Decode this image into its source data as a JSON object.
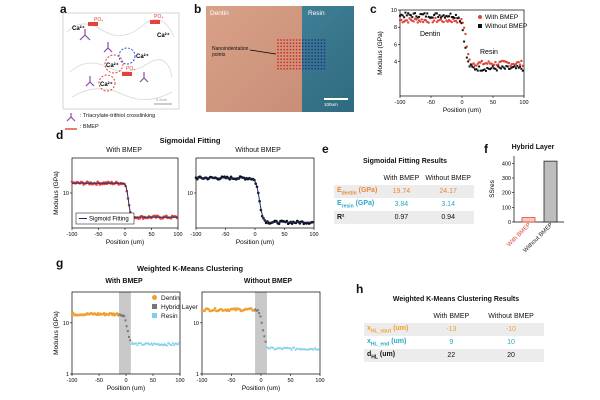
{
  "panels": {
    "a": {
      "label": "a",
      "legend": [
        {
          "icon": "triacrylate-trithiol-crosslink-icon",
          "text": ": Triacrylate-trithiol crosslinking"
        },
        {
          "icon": "bmep-icon",
          "text": ": BMEP"
        }
      ],
      "ions": [
        "Ca²⁺",
        "Ca²⁺",
        "Ca²⁺",
        "Ca²⁺",
        "Ca²⁺"
      ],
      "groups": [
        "PO₄",
        "PO₄",
        "PO₄"
      ],
      "scalebar": "0.5nm"
    },
    "b": {
      "label": "b",
      "left_region": "Dentin",
      "right_region": "Resin",
      "annotation": "Nanoindentation\npoints",
      "scalebar": "100um"
    },
    "c": {
      "label": "c",
      "ylabel": "Modulus (GPa)",
      "xlabel": "Position (um)",
      "legend": [
        "With BMEP",
        "Without BMEP"
      ],
      "region_labels": [
        "Dentin",
        "Resin"
      ]
    },
    "d": {
      "label": "d",
      "title": "Sigmoidal Fitting",
      "left_sub": "With BMEP",
      "right_sub": "Without BMEP",
      "ylabel": "Modulus (GPa)",
      "xlabel": "Position (um)",
      "legend": "Sigmoid Fitting"
    },
    "e": {
      "label": "e",
      "title": "Sigmoidal Fitting Results",
      "columns": [
        "With BMEP",
        "Without BMEP"
      ],
      "rows": [
        {
          "name": "E",
          "sub": "dentin",
          "unit": " (GPa)",
          "color": "#e8883a",
          "values": [
            "19.74",
            "24.17"
          ]
        },
        {
          "name": "E",
          "sub": "resin",
          "unit": " (GPa)",
          "color": "#2aa8c8",
          "values": [
            "3.84",
            "3.14"
          ]
        },
        {
          "name": "R²",
          "sub": "",
          "unit": "",
          "color": "#111111",
          "values": [
            "0.97",
            "0.94"
          ]
        }
      ]
    },
    "f": {
      "label": "f",
      "title": "Hybrid Layer",
      "ylabel": "SSres",
      "yticks": [
        "0",
        "100",
        "200",
        "300",
        "400"
      ],
      "bars": [
        {
          "name": "With BMEP",
          "value": 30,
          "color": "#e0453a"
        },
        {
          "name": "Without BMEP",
          "value": 415,
          "color": "#222222"
        }
      ]
    },
    "g": {
      "label": "g",
      "title": "Weighted K-Means Clustering",
      "left_sub": "With BMEP",
      "right_sub": "Without BMEP",
      "ylabel": "Modulus (GPa)",
      "xlabel": "Position (um)",
      "legend": [
        {
          "name": "Dentin",
          "color": "#f0a030"
        },
        {
          "name": "Hybrid Layer",
          "color": "#777777"
        },
        {
          "name": "Resin",
          "color": "#7ecfe8"
        }
      ]
    },
    "h": {
      "label": "h",
      "title": "Weighted K-Means Clustering Results",
      "columns": [
        "With BMEP",
        "Without BMEP"
      ],
      "rows": [
        {
          "name": "x",
          "sub": "HL_start",
          "unit": " (um)",
          "color": "#f0a030",
          "values": [
            "-13",
            "-10"
          ]
        },
        {
          "name": "x",
          "sub": "HL_end",
          "unit": " (um)",
          "color": "#2aa8c8",
          "values": [
            "9",
            "10"
          ]
        },
        {
          "name": "d",
          "sub": "HL",
          "unit": " (um)",
          "color": "#111111",
          "values": [
            "22",
            "20"
          ]
        }
      ]
    }
  },
  "chart_data": [
    {
      "id": "c",
      "type": "scatter",
      "xlabel": "Position (um)",
      "ylabel": "Modulus (GPa)",
      "xlim": [
        -100,
        100
      ],
      "ylim": [
        0,
        10
      ],
      "xticks": [
        "-100",
        "-50",
        "0",
        "50",
        "100"
      ],
      "yticks": [
        "4",
        "6",
        "8",
        "10"
      ],
      "series": [
        {
          "name": "With BMEP",
          "color": "#e0453a",
          "dentin": 8.8,
          "resin": 3.8,
          "x0": 7,
          "k": 0.5
        },
        {
          "name": "Without BMEP",
          "color": "#111111",
          "dentin": 9.4,
          "resin": 3.2,
          "x0": 4,
          "k": 0.35
        }
      ]
    },
    {
      "id": "d1",
      "type": "scatter",
      "xlabel": "Position (um)",
      "ylabel": "Modulus (GPa)",
      "xlim": [
        -100,
        100
      ],
      "xticks": [
        "-100",
        "-50",
        "0",
        "50",
        "100"
      ],
      "yticks": [
        "10"
      ],
      "series": [
        {
          "name": "With BMEP",
          "color": "#e0453a",
          "dentin": 19.74,
          "resin": 3.84,
          "x0": 5,
          "k": 0.5
        }
      ],
      "fit": "Sigmoid Fitting"
    },
    {
      "id": "d2",
      "type": "scatter",
      "xlabel": "Position (um)",
      "xlim": [
        -100,
        100
      ],
      "xticks": [
        "-100",
        "-50",
        "0",
        "50",
        "100"
      ],
      "yticks": [
        "10"
      ],
      "series": [
        {
          "name": "Without BMEP",
          "color": "#111111",
          "dentin": 24.17,
          "resin": 3.14,
          "x0": 5,
          "k": 0.35
        }
      ],
      "fit": "Sigmoid Fitting"
    },
    {
      "id": "f",
      "type": "bar",
      "categories": [
        "With BMEP",
        "Without BMEP"
      ],
      "values": [
        30,
        415
      ],
      "ylim": [
        0,
        450
      ],
      "ylabel": "SSres"
    },
    {
      "id": "g1",
      "type": "scatter",
      "xlabel": "Position (um)",
      "ylabel": "Modulus (GPa)",
      "xlim": [
        -100,
        100
      ],
      "xticks": [
        "-100",
        "-50",
        "0",
        "50",
        "100"
      ],
      "yticks": [
        "1",
        "10"
      ],
      "hybrid": [
        -13,
        9
      ],
      "dentin": 19.74,
      "resin": 3.84
    },
    {
      "id": "g2",
      "type": "scatter",
      "xlabel": "Position (um)",
      "xlim": [
        -100,
        100
      ],
      "xticks": [
        "-100",
        "-50",
        "0",
        "50",
        "100"
      ],
      "yticks": [
        "1",
        "10"
      ],
      "hybrid": [
        -10,
        10
      ],
      "dentin": 24.17,
      "resin": 3.14
    }
  ]
}
